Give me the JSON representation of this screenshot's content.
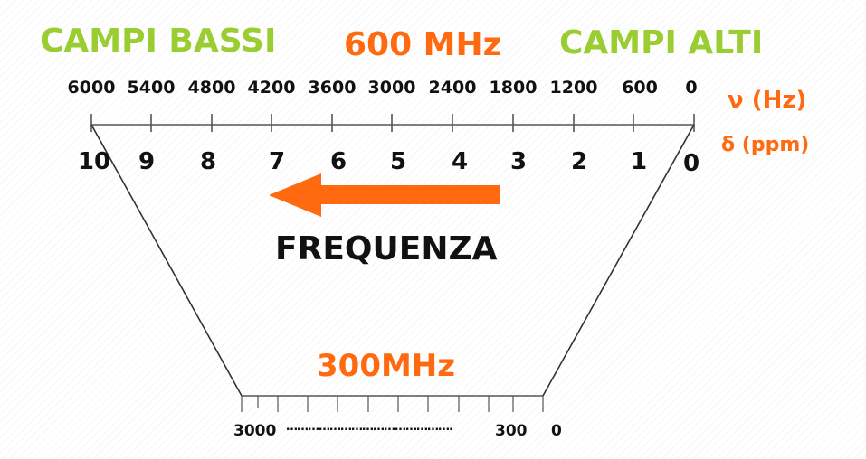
{
  "header": {
    "left": "CAMPI BASSI",
    "center": "600 MHz",
    "right": "CAMPI ALTI"
  },
  "hz_scale": [
    "6000",
    "5400",
    "4800",
    "4200",
    "3600",
    "3000",
    "2400",
    "1800",
    "1200",
    "600",
    "0"
  ],
  "ppm_scale": [
    "10",
    "9",
    "8",
    "7",
    "6",
    "5",
    "4",
    "3",
    "2",
    "1",
    "0"
  ],
  "units": {
    "hz": "ν (Hz)",
    "ppm": "δ (ppm)"
  },
  "arrow_label": "FREQUENZA",
  "low_field": {
    "label": "300MHz",
    "scale_left": "3000",
    "scale_dots": "……………………………………….",
    "scale_mid": "300",
    "scale_right": "0"
  },
  "colors": {
    "green": "#9acd32",
    "orange": "#ff6a10"
  }
}
